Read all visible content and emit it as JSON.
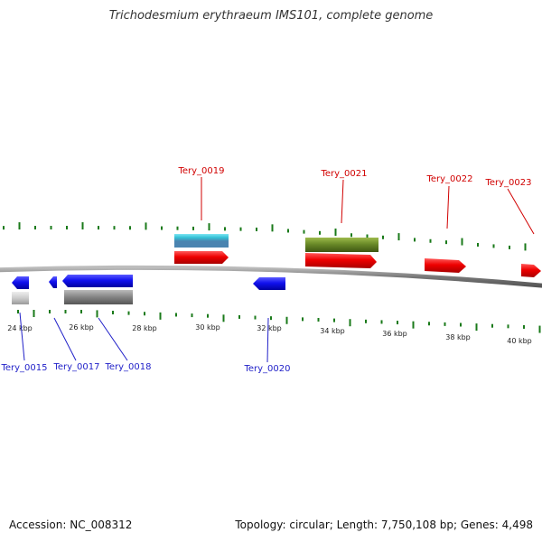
{
  "title": "Trichodesmium erythraeum IMS101, complete genome",
  "footer": {
    "accession": "Accession: NC_008312",
    "summary": "Topology: circular; Length: 7,750,108 bp; Genes: 4,498"
  },
  "colors": {
    "forward": "#ee0000",
    "reverse": "#1111ee",
    "rna": "#33c1d6",
    "rna_alt": "#4a84b0",
    "green": "#6a8a28",
    "gray": "#888888",
    "light_gray": "#cccccc",
    "tick": "#1a7a1a",
    "label_top": "#d10000",
    "label_bottom": "#1f1fc8"
  },
  "axis_labels": [
    "24 kbp",
    "26 kbp",
    "28 kbp",
    "30 kbp",
    "32 kbp",
    "34 kbp",
    "36 kbp",
    "38 kbp",
    "40 kbp"
  ],
  "genes": [
    {
      "name": "Tery_0015",
      "strand": "reverse"
    },
    {
      "name": "Tery_0017",
      "strand": "reverse"
    },
    {
      "name": "Tery_0018",
      "strand": "reverse"
    },
    {
      "name": "Tery_0019",
      "strand": "forward"
    },
    {
      "name": "Tery_0020",
      "strand": "reverse"
    },
    {
      "name": "Tery_0021",
      "strand": "forward"
    },
    {
      "name": "Tery_0022",
      "strand": "forward"
    },
    {
      "name": "Tery_0023",
      "strand": "forward"
    }
  ]
}
